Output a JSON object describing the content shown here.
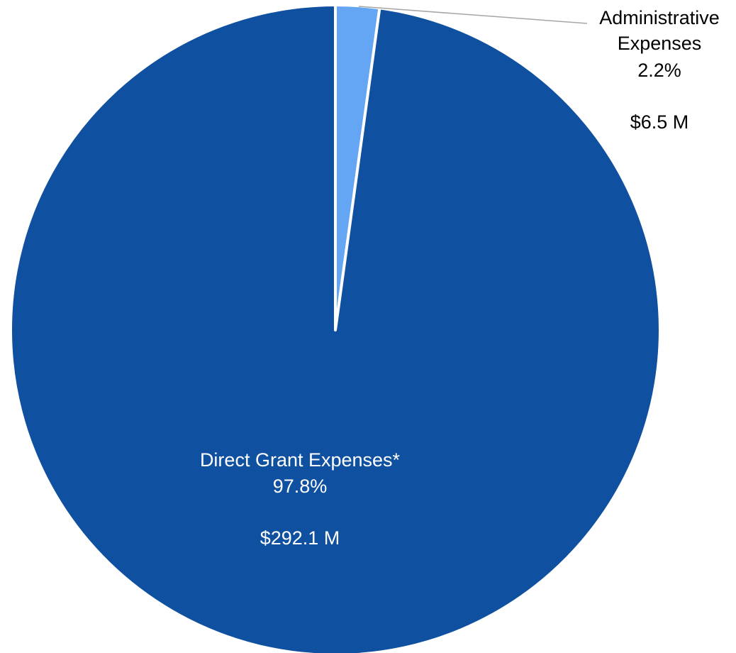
{
  "chart_data": {
    "type": "pie",
    "title": "",
    "slices": [
      {
        "name": "Administrative Expenses",
        "label_lines": [
          "Administrative",
          "Expenses"
        ],
        "percent_label": "2.2%",
        "amount_label": "$6.5 M",
        "value": 6.5,
        "percent": 2.2,
        "color": "#64A6F3",
        "label_color": "#000000"
      },
      {
        "name": "Direct Grant Expenses*",
        "label_lines": [
          "Direct Grant Expenses*"
        ],
        "percent_label": "97.8%",
        "amount_label": "$292.1 M",
        "value": 292.1,
        "percent": 97.8,
        "color": "#0F50A0",
        "label_color": "#ffffff"
      }
    ],
    "legend": "none",
    "start_angle": "12 o'clock, clockwise"
  }
}
